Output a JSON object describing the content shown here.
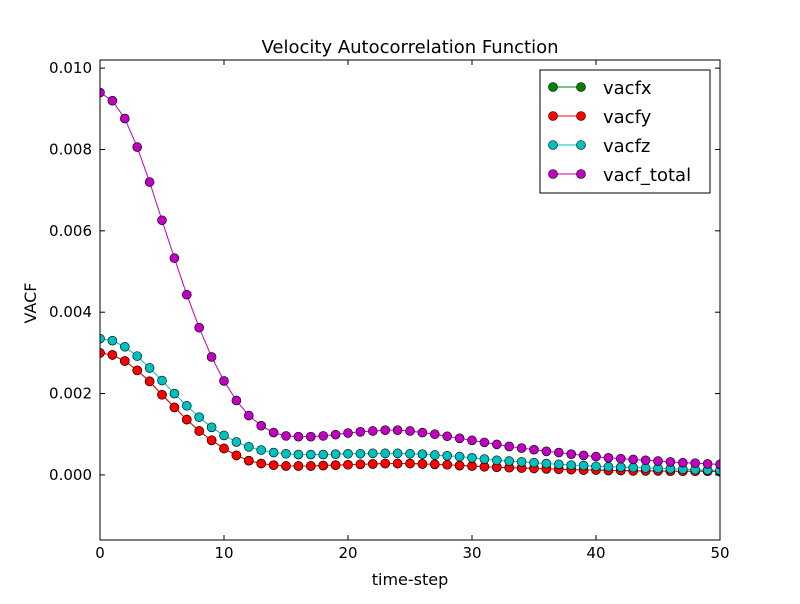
{
  "chart_data": {
    "type": "line",
    "title": "Velocity Autocorrelation Function",
    "xlabel": "time-step",
    "ylabel": "VACF",
    "xlim": [
      0,
      50
    ],
    "ylim": [
      -0.0016,
      0.0102
    ],
    "grid": false,
    "legend_position": "upper right",
    "x_ticks": [
      0,
      10,
      20,
      30,
      40,
      50
    ],
    "x_tick_labels": [
      "0",
      "10",
      "20",
      "30",
      "40",
      "50"
    ],
    "y_ticks": [
      0.0,
      0.002,
      0.004,
      0.006,
      0.008,
      0.01
    ],
    "y_tick_labels": [
      "0.000",
      "0.002",
      "0.004",
      "0.006",
      "0.008",
      "0.010"
    ],
    "x": [
      0,
      1,
      2,
      3,
      4,
      5,
      6,
      7,
      8,
      9,
      10,
      11,
      12,
      13,
      14,
      15,
      16,
      17,
      18,
      19,
      20,
      21,
      22,
      23,
      24,
      25,
      26,
      27,
      28,
      29,
      30,
      31,
      32,
      33,
      34,
      35,
      36,
      37,
      38,
      39,
      40,
      41,
      42,
      43,
      44,
      45,
      46,
      47,
      48,
      49,
      50
    ],
    "series": [
      {
        "name": "vacfx",
        "color": "#008000",
        "values": [
          0.003,
          0.00295,
          0.0028,
          0.00257,
          0.0023,
          0.00197,
          0.00166,
          0.00136,
          0.00108,
          0.00085,
          0.00065,
          0.00048,
          0.00035,
          0.00028,
          0.00024,
          0.00022,
          0.00022,
          0.00022,
          0.00023,
          0.00024,
          0.00025,
          0.00026,
          0.00027,
          0.00028,
          0.00028,
          0.00028,
          0.00027,
          0.00026,
          0.00025,
          0.00023,
          0.00022,
          0.0002,
          0.00019,
          0.00018,
          0.00017,
          0.00016,
          0.00015,
          0.00014,
          0.00013,
          0.00012,
          0.00012,
          0.00011,
          0.00011,
          0.0001,
          0.0001,
          0.0001,
          9e-05,
          9e-05,
          9e-05,
          9e-05,
          8e-05
        ]
      },
      {
        "name": "vacfy",
        "color": "#ff0000",
        "values": [
          0.003,
          0.00295,
          0.0028,
          0.00257,
          0.0023,
          0.00197,
          0.00166,
          0.00136,
          0.00108,
          0.00085,
          0.00065,
          0.00048,
          0.00035,
          0.00028,
          0.00024,
          0.00022,
          0.00022,
          0.00022,
          0.00023,
          0.00024,
          0.00025,
          0.00026,
          0.00027,
          0.00028,
          0.00028,
          0.00028,
          0.00027,
          0.00026,
          0.00025,
          0.00023,
          0.00022,
          0.0002,
          0.00019,
          0.00018,
          0.00017,
          0.00016,
          0.00015,
          0.00014,
          0.00013,
          0.00012,
          0.00012,
          0.00011,
          0.00011,
          0.0001,
          0.0001,
          0.0001,
          9e-05,
          9e-05,
          9e-05,
          9e-05,
          8e-05
        ]
      },
      {
        "name": "vacfz",
        "color": "#00bfbf",
        "values": [
          0.00335,
          0.0033,
          0.00315,
          0.00292,
          0.00263,
          0.00232,
          0.002,
          0.0017,
          0.00142,
          0.00117,
          0.00097,
          0.00081,
          0.00069,
          0.00061,
          0.00055,
          0.00052,
          0.0005,
          0.0005,
          0.0005,
          0.00051,
          0.00052,
          0.00052,
          0.00053,
          0.00053,
          0.00053,
          0.00052,
          0.00051,
          0.00049,
          0.00047,
          0.00045,
          0.00042,
          0.00039,
          0.00036,
          0.00034,
          0.00032,
          0.0003,
          0.00028,
          0.00026,
          0.00024,
          0.00023,
          0.00021,
          0.0002,
          0.00019,
          0.00018,
          0.00017,
          0.00016,
          0.00015,
          0.00014,
          0.00013,
          0.00012,
          0.00011
        ]
      },
      {
        "name": "vacf_total",
        "color": "#bf00bf",
        "values": [
          0.0094,
          0.0092,
          0.00876,
          0.00806,
          0.0072,
          0.00626,
          0.00533,
          0.00443,
          0.00362,
          0.0029,
          0.00231,
          0.00183,
          0.00146,
          0.00121,
          0.00104,
          0.00096,
          0.00094,
          0.00094,
          0.00096,
          0.00099,
          0.00103,
          0.00106,
          0.00108,
          0.0011,
          0.0011,
          0.00108,
          0.00104,
          0.001,
          0.00095,
          0.0009,
          0.00085,
          0.0008,
          0.00075,
          0.0007,
          0.00066,
          0.00062,
          0.00058,
          0.00055,
          0.00051,
          0.00048,
          0.00045,
          0.00042,
          0.0004,
          0.00038,
          0.00036,
          0.00034,
          0.00032,
          0.0003,
          0.00029,
          0.00027,
          0.00026
        ]
      }
    ]
  }
}
